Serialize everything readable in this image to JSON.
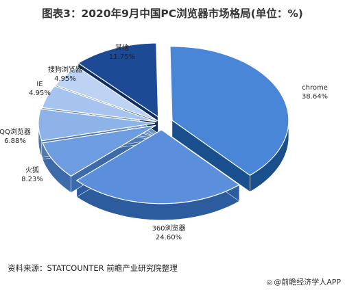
{
  "header": {
    "title": "图表3：2020年9月中国PC浏览器市场格局(单位：%)"
  },
  "footer": {
    "source": "资料来源：STATCOUNTER 前瞻产业研究院整理",
    "brand": "@前瞻经济学人APP"
  },
  "chart_data": {
    "type": "pie",
    "title": "图表3：2020年9月中国PC浏览器市场格局(单位：%)",
    "slices": [
      {
        "name": "chrome",
        "value": 38.64,
        "label": "38.64%",
        "color": "#4a86d8"
      },
      {
        "name": "360浏览器",
        "value": 24.6,
        "label": "24.60%",
        "color": "#5b8fdc"
      },
      {
        "name": "火狐",
        "value": 8.23,
        "label": "8.23%",
        "color": "#6d9de0"
      },
      {
        "name": "QQ浏览器",
        "value": 6.88,
        "label": "6.88%",
        "color": "#8db3e8"
      },
      {
        "name": "IE",
        "value": 4.95,
        "label": "4.95%",
        "color": "#a7c4ee"
      },
      {
        "name": "搜狗浏览器",
        "value": 4.95,
        "label": "4.95%",
        "color": "#bcd3f3"
      },
      {
        "name": "其他",
        "value": 11.75,
        "label": "11.75%",
        "color": "#1c4a94"
      }
    ]
  }
}
